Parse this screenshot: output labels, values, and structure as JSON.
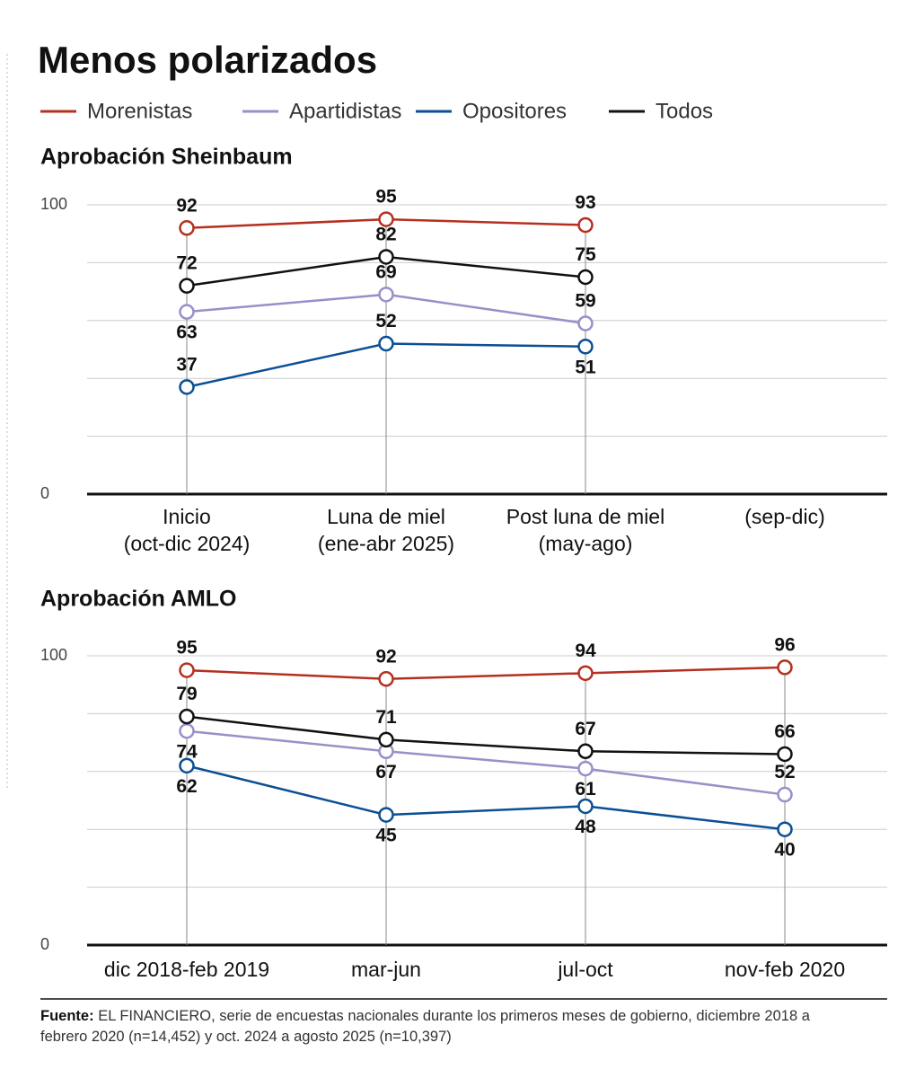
{
  "title": "Menos polarizados",
  "legend": [
    {
      "name": "Morenistas",
      "color": "#b5301f"
    },
    {
      "name": "Apartidistas",
      "color": "#9b8ec9"
    },
    {
      "name": "Opositores",
      "color": "#0b4f94"
    },
    {
      "name": "Todos",
      "color": "#111111"
    }
  ],
  "chart_data": [
    {
      "type": "line",
      "title": "Aprobación Sheinbaum",
      "categories": [
        "Inicio\n(oct-dic 2024)",
        "Luna de miel\n(ene-abr 2025)",
        "Post luna de miel\n(may-ago)",
        "(sep-dic)"
      ],
      "series": [
        {
          "color": "#b5301f",
          "values": [
            92,
            95,
            93,
            null
          ]
        },
        {
          "color": "#9b8ec9",
          "values": [
            63,
            69,
            59,
            null
          ]
        },
        {
          "color": "#0b4f94",
          "values": [
            37,
            52,
            51,
            null
          ]
        },
        {
          "color": "#111111",
          "values": [
            72,
            82,
            75,
            null
          ]
        }
      ],
      "ylim": [
        0,
        100
      ],
      "yticks": [
        0,
        100
      ],
      "minor_yticks": [
        20,
        40,
        60,
        80
      ],
      "grid": true
    },
    {
      "type": "line",
      "title": "Aprobación AMLO",
      "categories": [
        "dic 2018-feb 2019",
        "mar-jun",
        "jul-oct",
        "nov-feb 2020"
      ],
      "series": [
        {
          "color": "#b5301f",
          "values": [
            95,
            92,
            94,
            96
          ]
        },
        {
          "color": "#9b8ec9",
          "values": [
            74,
            67,
            61,
            52
          ]
        },
        {
          "color": "#0b4f94",
          "values": [
            62,
            45,
            48,
            40
          ]
        },
        {
          "color": "#111111",
          "values": [
            79,
            71,
            67,
            66
          ]
        }
      ],
      "ylim": [
        0,
        100
      ],
      "yticks": [
        0,
        100
      ],
      "minor_yticks": [
        20,
        40,
        60,
        80
      ],
      "grid": true
    }
  ],
  "source_label": "Fuente:",
  "source": "EL FINANCIERO, serie de encuestas nacionales durante los primeros meses de gobierno, diciembre 2018 a febrero 2020 (n=14,452) y oct. 2024 a agosto 2025 (n=10,397)"
}
